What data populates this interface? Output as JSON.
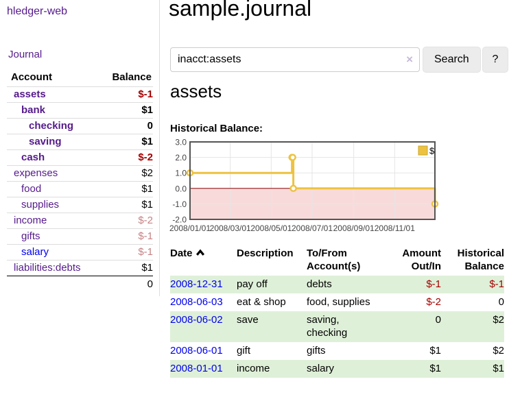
{
  "colors": {
    "link_purple": "#551a8b",
    "link_blue": "#0000ee",
    "negative_strong": "#a40000",
    "negative_muted": "#c68285",
    "row_green": "#dff0d8",
    "series_gold": "#edc240",
    "negative_region_pink": "#f9dada",
    "zero_line_red": "#8b0000",
    "grid_gray": "#e5e5e5",
    "chart_border": "#545454"
  },
  "sidebar": {
    "app_title": "hledger-web",
    "journal_label": "Journal",
    "accounts": {
      "header_account": "Account",
      "header_balance": "Balance",
      "rows": [
        {
          "name": "assets",
          "depth": 1,
          "bold": true,
          "link": "purple",
          "balance": "$-1",
          "balance_class": "neg-strong"
        },
        {
          "name": "bank",
          "depth": 2,
          "bold": true,
          "link": "purple",
          "balance": "$1",
          "balance_class": ""
        },
        {
          "name": "checking",
          "depth": 3,
          "bold": true,
          "link": "purple",
          "balance": "0",
          "balance_class": ""
        },
        {
          "name": "saving",
          "depth": 3,
          "bold": true,
          "link": "purple",
          "balance": "$1",
          "balance_class": ""
        },
        {
          "name": "cash",
          "depth": 2,
          "bold": true,
          "link": "purple",
          "balance": "$-2",
          "balance_class": "neg-strong"
        },
        {
          "name": "expenses",
          "depth": 1,
          "bold": false,
          "link": "purple",
          "balance": "$2",
          "balance_class": ""
        },
        {
          "name": "food",
          "depth": 2,
          "bold": false,
          "link": "purple",
          "balance": "$1",
          "balance_class": ""
        },
        {
          "name": "supplies",
          "depth": 2,
          "bold": false,
          "link": "purple",
          "balance": "$1",
          "balance_class": ""
        },
        {
          "name": "income",
          "depth": 1,
          "bold": false,
          "link": "purple",
          "balance": "$-2",
          "balance_class": "neg-muted"
        },
        {
          "name": "gifts",
          "depth": 2,
          "bold": false,
          "link": "purple",
          "balance": "$-1",
          "balance_class": "neg-muted"
        },
        {
          "name": "salary",
          "depth": 2,
          "bold": false,
          "link": "blue",
          "balance": "$-1",
          "balance_class": "neg-muted"
        },
        {
          "name": "liabilities:debts",
          "depth": 1,
          "bold": false,
          "link": "purple",
          "balance": "$1",
          "balance_class": ""
        }
      ],
      "total": "0"
    }
  },
  "main": {
    "title": "sample.journal",
    "search": {
      "value": "inacct:assets",
      "clear_icon": "×",
      "button_label": "Search",
      "help_label": "?"
    },
    "account_heading": "assets",
    "chart_label": "Historical Balance:"
  },
  "chart_data": {
    "type": "line",
    "title": "Historical Balance",
    "step": true,
    "grid": true,
    "ylim": [
      -2,
      3
    ],
    "xlim_days": [
      0,
      365
    ],
    "y_ticks": [
      {
        "label": "3.0",
        "value": 3
      },
      {
        "label": "2.0",
        "value": 2
      },
      {
        "label": "1.0",
        "value": 1
      },
      {
        "label": "0.0",
        "value": 0
      },
      {
        "label": "-1.0",
        "value": -1
      },
      {
        "label": "-2.0",
        "value": -2
      }
    ],
    "x_ticks": [
      {
        "label": "2008/01/01",
        "day": 0
      },
      {
        "label": "2008/03/01",
        "day": 60
      },
      {
        "label": "2008/05/01",
        "day": 121
      },
      {
        "label": "2008/07/01",
        "day": 182
      },
      {
        "label": "2008/09/01",
        "day": 244
      },
      {
        "label": "2008/11/01",
        "day": 305
      }
    ],
    "series": [
      {
        "name": "$",
        "color": "#edc240",
        "points": [
          {
            "date": "2008-01-01",
            "day": 0,
            "value": 1
          },
          {
            "date": "2008-06-01",
            "day": 152,
            "value": 2
          },
          {
            "date": "2008-06-02",
            "day": 153,
            "value": 2
          },
          {
            "date": "2008-06-03",
            "day": 154,
            "value": 0
          },
          {
            "date": "2008-12-31",
            "day": 365,
            "value": -1
          }
        ]
      }
    ],
    "legend": {
      "label": "$",
      "position": "top-right"
    },
    "negative_region_color": "#f9dada",
    "zero_line_color": "#8b0000"
  },
  "register": {
    "headers": {
      "date": "Date",
      "description": "Description",
      "account": "To/From Account(s)",
      "amount": "Amount Out/In",
      "balance": "Historical Balance"
    },
    "sorted_by": "date",
    "rows": [
      {
        "date": "2008-12-31",
        "description": "pay off",
        "account": "debts",
        "amount": "$-1",
        "amount_neg": true,
        "balance": "$-1",
        "balance_neg": true
      },
      {
        "date": "2008-06-03",
        "description": "eat & shop",
        "account": "food, supplies",
        "amount": "$-2",
        "amount_neg": true,
        "balance": "0",
        "balance_neg": false
      },
      {
        "date": "2008-06-02",
        "description": "save",
        "account": "saving, checking",
        "amount": "0",
        "amount_neg": false,
        "balance": "$2",
        "balance_neg": false
      },
      {
        "date": "2008-06-01",
        "description": "gift",
        "account": "gifts",
        "amount": "$1",
        "amount_neg": false,
        "balance": "$2",
        "balance_neg": false
      },
      {
        "date": "2008-01-01",
        "description": "income",
        "account": "salary",
        "amount": "$1",
        "amount_neg": false,
        "balance": "$1",
        "balance_neg": false
      }
    ]
  }
}
